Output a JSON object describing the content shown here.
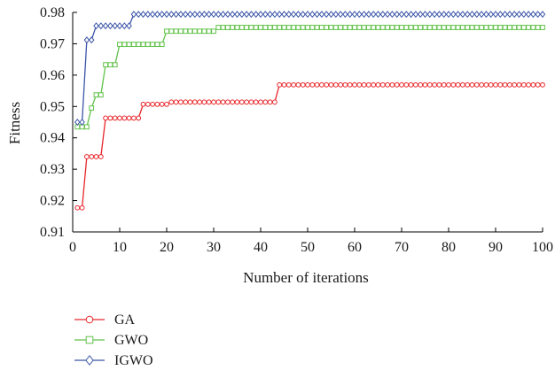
{
  "chart_data": {
    "type": "line",
    "xlabel": "Number of iterations",
    "ylabel": "Fitness",
    "xlim": [
      0,
      100
    ],
    "ylim": [
      0.91,
      0.98
    ],
    "x_ticks": [
      "0",
      "10",
      "20",
      "30",
      "40",
      "50",
      "60",
      "70",
      "80",
      "90",
      "100"
    ],
    "y_ticks": [
      "0.91",
      "0.92",
      "0.93",
      "0.94",
      "0.95",
      "0.96",
      "0.97",
      "0.98"
    ],
    "grid": false,
    "legend_position": "bottom-left",
    "series": [
      {
        "name": "GA",
        "color": "#e8262a",
        "marker": "circle",
        "steps": [
          [
            1,
            0.9177
          ],
          [
            3,
            0.934
          ],
          [
            7,
            0.9463
          ],
          [
            15,
            0.9507
          ],
          [
            21,
            0.9514
          ],
          [
            44,
            0.9569
          ]
        ]
      },
      {
        "name": "GWO",
        "color": "#62c24a",
        "marker": "square",
        "steps": [
          [
            1,
            0.9435
          ],
          [
            4,
            0.9495
          ],
          [
            5,
            0.9537
          ],
          [
            7,
            0.9633
          ],
          [
            10,
            0.9698
          ],
          [
            20,
            0.974
          ],
          [
            31,
            0.9752
          ]
        ]
      },
      {
        "name": "IGWO",
        "color": "#3b55a8",
        "marker": "diamond",
        "steps": [
          [
            1,
            0.945
          ],
          [
            3,
            0.9712
          ],
          [
            5,
            0.9757
          ],
          [
            13,
            0.9794
          ]
        ]
      }
    ]
  }
}
